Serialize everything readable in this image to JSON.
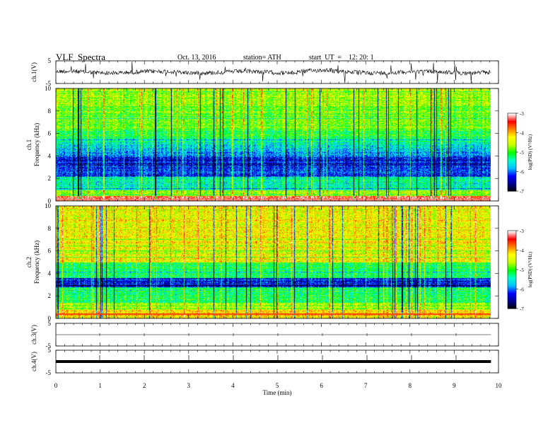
{
  "header": {
    "title": "VLF  Spectra",
    "date": "Oct. 13, 2016",
    "station": "station= ATH",
    "start_ut": "start  UT  =    12: 20: 1"
  },
  "chart_data": {
    "type": "heatmap",
    "x_axis": {
      "label": "Time  (min)",
      "range": [
        0,
        10
      ],
      "ticks": [
        "0",
        "1",
        "2",
        "3",
        "4",
        "5",
        "6",
        "7",
        "8",
        "9",
        "10"
      ]
    },
    "data_end_min": 9.83,
    "panels": [
      {
        "id": "ch1-voltage",
        "type": "line",
        "ylabel": "ch.1(V)",
        "ylim": [
          -5,
          5
        ],
        "ticks": [
          "5",
          "-5"
        ],
        "mean": 0
      },
      {
        "id": "ch1-spectrogram",
        "type": "heatmap",
        "ylabel_top": "ch.1",
        "ylabel": "Frequency  (kHz)",
        "ylim": [
          0,
          10
        ],
        "ticks": [
          "0",
          "2",
          "4",
          "6",
          "8",
          "10"
        ],
        "colorbar": {
          "label": "log(PSD) (V²/Hz)",
          "range": [
            -7,
            -3
          ],
          "ticks": [
            "-3",
            "-4",
            "-5",
            "-6",
            "-7"
          ]
        }
      },
      {
        "id": "ch2-spectrogram",
        "type": "heatmap",
        "ylabel_top": "ch.2",
        "ylabel": "Frequency  (kHz)",
        "ylim": [
          0,
          10
        ],
        "ticks": [
          "0",
          "2",
          "4",
          "6",
          "8",
          "10"
        ],
        "colorbar": {
          "label": "log(PSD) (V²/Hz)",
          "range": [
            -7,
            -3
          ],
          "ticks": [
            "-3",
            "-4",
            "-5",
            "-6",
            "-7"
          ]
        }
      },
      {
        "id": "ch3-voltage",
        "type": "line",
        "ylabel": "ch.3(V)",
        "ylim": [
          -5,
          5
        ],
        "ticks": [
          "5",
          "-5"
        ],
        "mean": 0
      },
      {
        "id": "ch4-voltage",
        "type": "line",
        "ylabel": "ch.4(V)",
        "ylim": [
          -5,
          5
        ],
        "ticks": [
          "5",
          "-5"
        ],
        "mean": 0
      }
    ],
    "colorscale": [
      "#000000",
      "#00008b",
      "#0000ff",
      "#00c0ff",
      "#00ffcc",
      "#00ff00",
      "#c8ff00",
      "#ffff00",
      "#ff8000",
      "#ff0000",
      "#ffffff"
    ]
  }
}
